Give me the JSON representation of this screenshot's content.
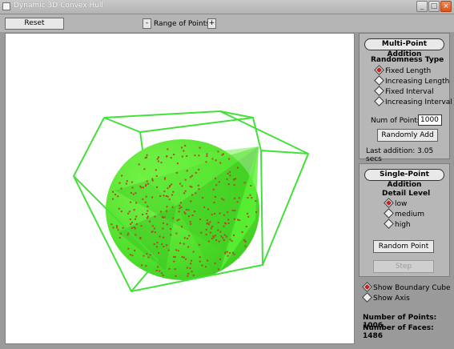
{
  "window": {
    "title": "Dynamic 3D Convex Hull",
    "minimize_glyph": "_",
    "maximize_glyph": "□",
    "close_glyph": "×"
  },
  "toolbar": {
    "reset_label": "Reset",
    "decrease_label": "-",
    "range_label": "Range of Points",
    "increase_label": "+"
  },
  "multi_point": {
    "title": "Multi-Point Addition",
    "randomness_label": "Randomness Type",
    "options": [
      "Fixed Length",
      "Increasing Length",
      "Fixed Interval",
      "Increasing Interval"
    ],
    "selected_option": "Fixed Length",
    "num_points_label": "Num of Points",
    "num_points_value": "1000",
    "randomly_add_label": "Randomly Add",
    "last_addition": "Last addition: 3.05 secs"
  },
  "single_point": {
    "title": "Single-Point Addition",
    "detail_label": "Detail Level",
    "options": [
      "low",
      "medium",
      "high"
    ],
    "selected_option": "low",
    "random_point_label": "Random Point",
    "step_label": "Step"
  },
  "display": {
    "show_boundary_cube_label": "Show Boundary Cube",
    "show_boundary_cube": true,
    "show_axis_label": "Show Axis",
    "show_axis": false
  },
  "stats": {
    "points_text": "Number of Points: 1006",
    "faces_text": "Number of Faces: 1486"
  },
  "colors": {
    "hull_fill": "#55e82c",
    "cube_lines": "#44e03a",
    "points": "#b04a2a",
    "selected_radio": "#d31e1e"
  }
}
